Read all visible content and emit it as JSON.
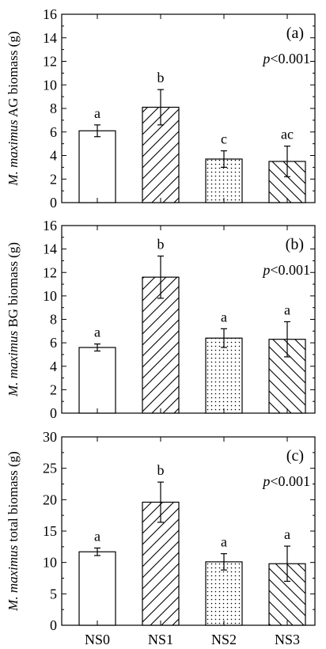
{
  "chart_data": [
    {
      "type": "bar",
      "panel_label": "(a)",
      "ylabel_italic": "M. maximus",
      "ylabel_rest": " AG biomass (g)",
      "p_italic": "p",
      "p_rest": "<0.001",
      "ylim": [
        0,
        16
      ],
      "yticks": [
        0,
        2,
        4,
        6,
        8,
        10,
        12,
        14,
        16
      ],
      "categories": [
        "NS0",
        "NS1",
        "NS2",
        "NS3"
      ],
      "values": [
        6.1,
        8.1,
        3.7,
        3.5
      ],
      "errors": [
        0.5,
        1.5,
        0.7,
        1.3
      ],
      "letters": [
        "a",
        "b",
        "c",
        "ac"
      ],
      "patterns": [
        "none",
        "diag-up",
        "dots",
        "diag-down"
      ],
      "show_x_labels": false
    },
    {
      "type": "bar",
      "panel_label": "(b)",
      "ylabel_italic": "M. maximus",
      "ylabel_rest": " BG biomass (g)",
      "p_italic": "p",
      "p_rest": "<0.001",
      "ylim": [
        0,
        16
      ],
      "yticks": [
        0,
        2,
        4,
        6,
        8,
        10,
        12,
        14,
        16
      ],
      "categories": [
        "NS0",
        "NS1",
        "NS2",
        "NS3"
      ],
      "values": [
        5.6,
        11.6,
        6.4,
        6.3
      ],
      "errors": [
        0.3,
        1.8,
        0.8,
        1.5
      ],
      "letters": [
        "a",
        "b",
        "a",
        "a"
      ],
      "patterns": [
        "none",
        "diag-up",
        "dots",
        "diag-down"
      ],
      "show_x_labels": false
    },
    {
      "type": "bar",
      "panel_label": "(c)",
      "ylabel_italic": "M. maximus",
      "ylabel_rest": " total biomass (g)",
      "p_italic": "p",
      "p_rest": "<0.001",
      "ylim": [
        0,
        30
      ],
      "yticks": [
        0,
        5,
        10,
        15,
        20,
        25,
        30
      ],
      "categories": [
        "NS0",
        "NS1",
        "NS2",
        "NS3"
      ],
      "values": [
        11.7,
        19.6,
        10.1,
        9.8
      ],
      "errors": [
        0.6,
        3.2,
        1.3,
        2.8
      ],
      "letters": [
        "a",
        "b",
        "a",
        "a"
      ],
      "patterns": [
        "none",
        "diag-up",
        "dots",
        "diag-down"
      ],
      "show_x_labels": true
    }
  ]
}
